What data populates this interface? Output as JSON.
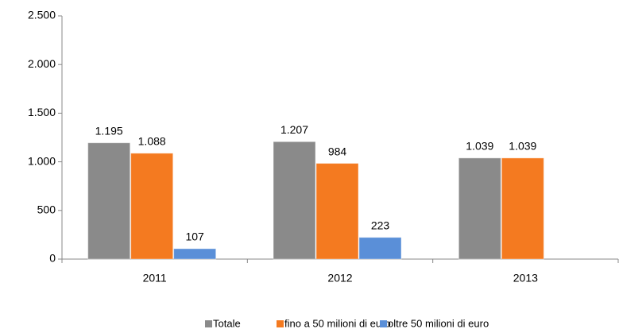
{
  "chart_data": {
    "type": "bar",
    "categories": [
      "2011",
      "2012",
      "2013"
    ],
    "series": [
      {
        "name": "Totale",
        "color": "#8a8a8a",
        "values": [
          1195,
          1207,
          1039
        ],
        "value_labels": [
          "1.195",
          "1.207",
          "1.039"
        ]
      },
      {
        "name": "fino a 50 milioni di euro",
        "color": "#f47a20",
        "values": [
          1088,
          984,
          1039
        ],
        "value_labels": [
          "1.088",
          "984",
          "1.039"
        ]
      },
      {
        "name": "oltre  50 milioni di euro",
        "color": "#5a8fd8",
        "values": [
          107,
          223,
          null
        ],
        "value_labels": [
          "107",
          "223",
          null
        ]
      }
    ],
    "ylim": [
      0,
      2500
    ],
    "yticks": [
      0,
      500,
      {
        "value": 1000,
        "label": "1.000"
      },
      {
        "value": 1500,
        "label": "1.500"
      },
      {
        "value": 2000,
        "label": "2.000"
      },
      {
        "value": 2500,
        "label": "2.500"
      }
    ],
    "legend": "bottom"
  }
}
